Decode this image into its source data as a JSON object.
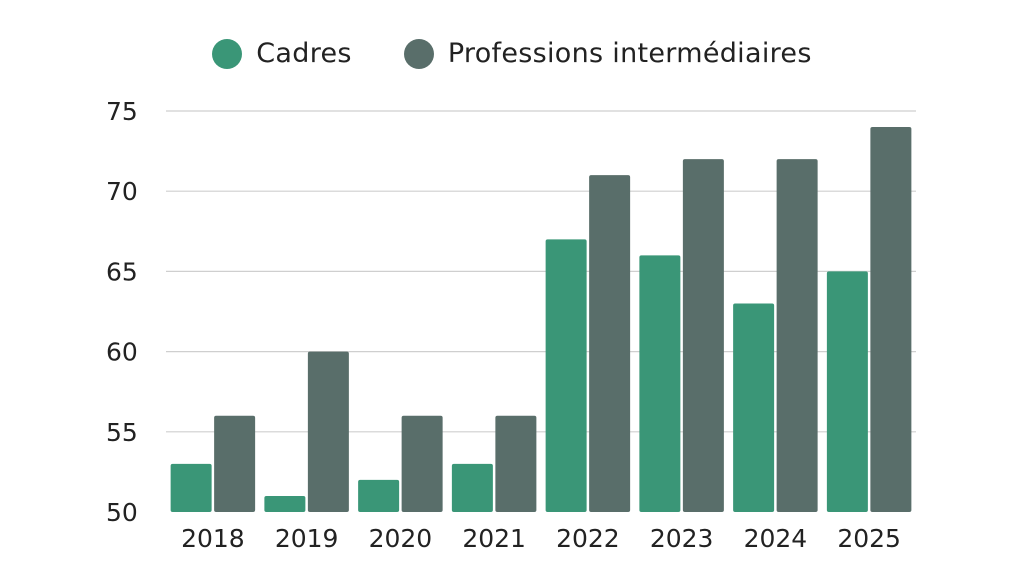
{
  "chart_data": {
    "type": "bar",
    "categories": [
      "2018",
      "2019",
      "2020",
      "2021",
      "2022",
      "2023",
      "2024",
      "2025"
    ],
    "series": [
      {
        "name": "Cadres",
        "color": "#3a9677",
        "values": [
          53,
          51,
          52,
          53,
          67,
          66,
          63,
          65
        ]
      },
      {
        "name": "Professions intermédiaires",
        "color": "#596e6a",
        "values": [
          56,
          60,
          56,
          56,
          71,
          72,
          72,
          74
        ]
      }
    ],
    "ylim": [
      50,
      75
    ],
    "yticks": [
      "50",
      "55",
      "60",
      "65",
      "70",
      "75"
    ],
    "grid": true,
    "legend_position": "top-center",
    "title": "",
    "xlabel": "",
    "ylabel": ""
  }
}
